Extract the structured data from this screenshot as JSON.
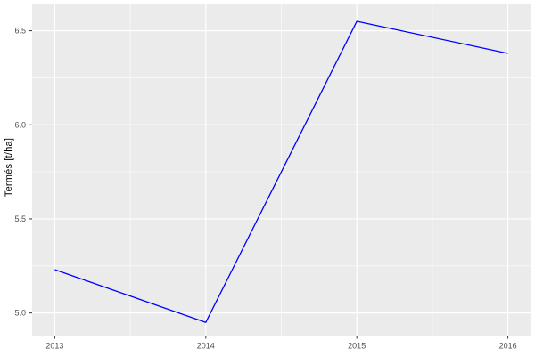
{
  "chart_data": {
    "type": "line",
    "title": "",
    "xlabel": "",
    "ylabel": "Termés [t/ha]",
    "x": [
      2013,
      2014,
      2015,
      2016
    ],
    "series": [
      {
        "name": "Termés",
        "color": "#0000FF",
        "values": [
          5.23,
          4.95,
          6.55,
          6.38
        ]
      }
    ],
    "xlim": [
      2012.85,
      2016.15
    ],
    "ylim": [
      4.88,
      6.64
    ],
    "x_ticks": [
      2013,
      2014,
      2015,
      2016
    ],
    "x_tick_labels": [
      "2013",
      "2014",
      "2015",
      "2016"
    ],
    "y_ticks": [
      5.0,
      5.5,
      6.0,
      6.5
    ],
    "y_tick_labels": [
      "5.0",
      "5.5",
      "6.0",
      "6.5"
    ],
    "x_minor_ticks": [
      2013.5,
      2014.5,
      2015.5
    ],
    "y_minor_ticks": [
      5.25,
      5.75,
      6.25
    ],
    "grid": true,
    "legend_position": "none",
    "colors": {
      "page_bg": "#FFFFFF",
      "panel_bg": "#EBEBEB",
      "grid_major": "#FFFFFF",
      "grid_minor": "#FFFFFF",
      "tick_mark": "#333333",
      "tick_label": "#4D4D4D",
      "axis_title": "#000000",
      "line": "#0000FF"
    }
  }
}
